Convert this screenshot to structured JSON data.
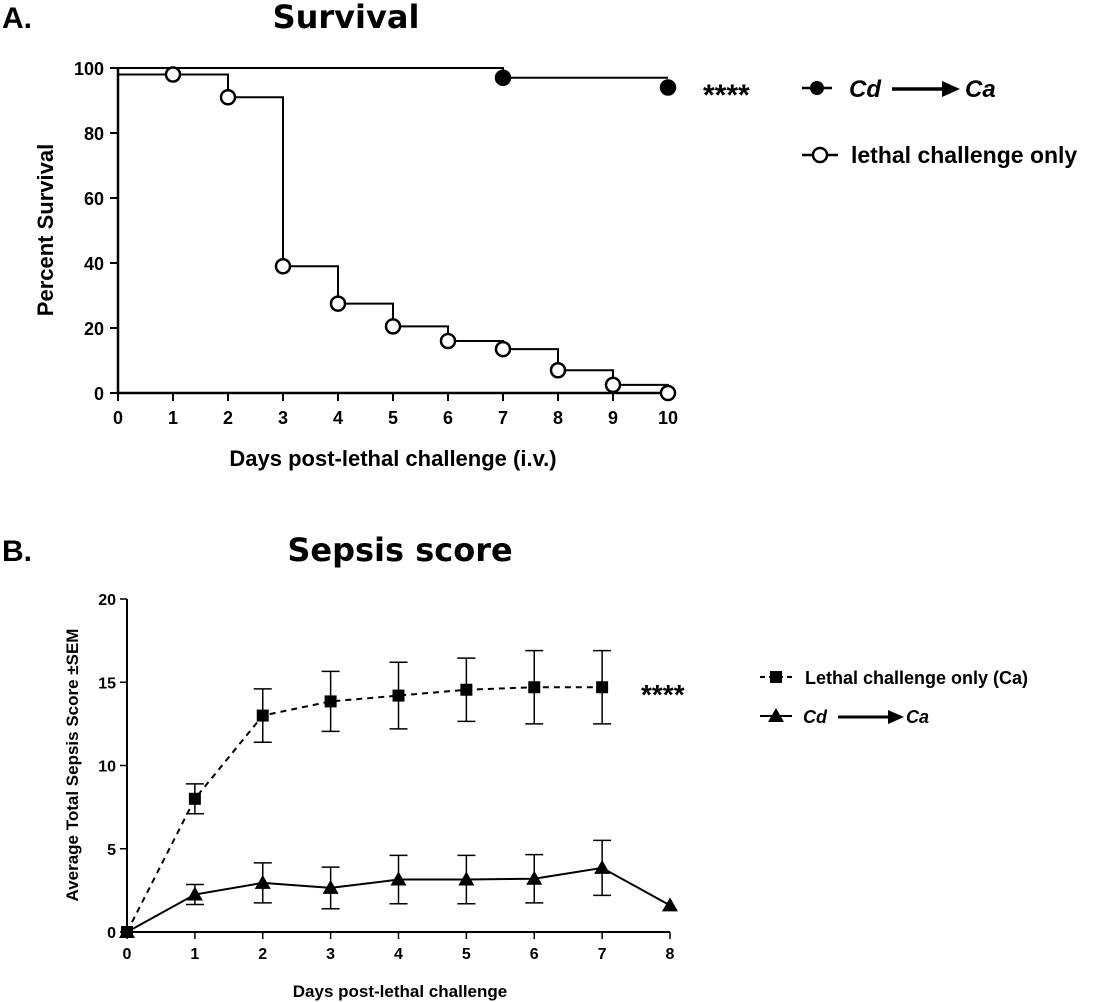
{
  "chart_data": [
    {
      "type": "line",
      "subtype": "kaplan-meier",
      "panel_label": "A.",
      "title": "Survival",
      "xlabel": "Days post-lethal challenge (i.v.)",
      "ylabel": "Percent Survival",
      "xlim": [
        0,
        10
      ],
      "ylim": [
        0,
        100
      ],
      "xticks": [
        "0",
        "1",
        "2",
        "3",
        "4",
        "5",
        "6",
        "7",
        "8",
        "9",
        "10"
      ],
      "yticks": [
        "0",
        "20",
        "40",
        "60",
        "80",
        "100"
      ],
      "significance": "****",
      "legend_position": "right",
      "series": [
        {
          "name": "Cd → Ca",
          "legend_from": "Cd",
          "legend_to": "Ca",
          "marker": "filled-circle",
          "steps": [
            [
              0,
              100
            ],
            [
              7,
              97
            ],
            [
              10,
              97
            ]
          ],
          "points": [
            [
              7,
              97
            ],
            [
              10,
              94
            ]
          ]
        },
        {
          "name": "lethal challenge only",
          "legend": "lethal challenge only",
          "marker": "open-circle",
          "steps": [
            [
              0,
              98
            ],
            [
              2,
              91
            ],
            [
              3,
              39
            ],
            [
              4,
              27.5
            ],
            [
              5,
              20.5
            ],
            [
              6,
              16
            ],
            [
              7,
              13.5
            ],
            [
              8,
              7
            ],
            [
              9,
              2.5
            ],
            [
              10,
              0
            ]
          ],
          "points": [
            [
              1,
              98
            ],
            [
              2,
              91
            ],
            [
              3,
              39
            ],
            [
              4,
              27.5
            ],
            [
              5,
              20.5
            ],
            [
              6,
              16
            ],
            [
              7,
              13.5
            ],
            [
              8,
              7
            ],
            [
              9,
              2.5
            ],
            [
              10,
              0
            ]
          ]
        }
      ]
    },
    {
      "type": "line",
      "panel_label": "B.",
      "title": "Sepsis score",
      "xlabel": "Days post-lethal challenge",
      "ylabel": "Average Total Sepsis Score ±SEM",
      "xlim": [
        0,
        8
      ],
      "ylim": [
        0,
        20
      ],
      "xticks": [
        "0",
        "1",
        "2",
        "3",
        "4",
        "5",
        "6",
        "7",
        "8"
      ],
      "yticks": [
        "0",
        "5",
        "10",
        "15",
        "20"
      ],
      "significance": "****",
      "legend_position": "right",
      "series": [
        {
          "name": "Lethal challenge only (Ca)",
          "legend": "Lethal challenge only (Ca)",
          "marker": "filled-square",
          "line": "dashed",
          "x": [
            0,
            1,
            2,
            3,
            4,
            5,
            6,
            7
          ],
          "y": [
            0,
            8.0,
            13.0,
            13.85,
            14.2,
            14.55,
            14.7,
            14.7
          ],
          "err": [
            0,
            0.9,
            1.6,
            1.8,
            2.0,
            1.9,
            2.2,
            2.2
          ]
        },
        {
          "name": "Cd → Ca",
          "legend_from": "Cd",
          "legend_to": "Ca",
          "marker": "filled-triangle",
          "line": "solid",
          "x": [
            0,
            1,
            2,
            3,
            4,
            5,
            6,
            7,
            8
          ],
          "y": [
            0,
            2.25,
            2.95,
            2.65,
            3.15,
            3.15,
            3.2,
            3.85,
            1.6
          ],
          "err": [
            0,
            0.6,
            1.2,
            1.25,
            1.45,
            1.45,
            1.45,
            1.65,
            0
          ]
        }
      ]
    }
  ]
}
